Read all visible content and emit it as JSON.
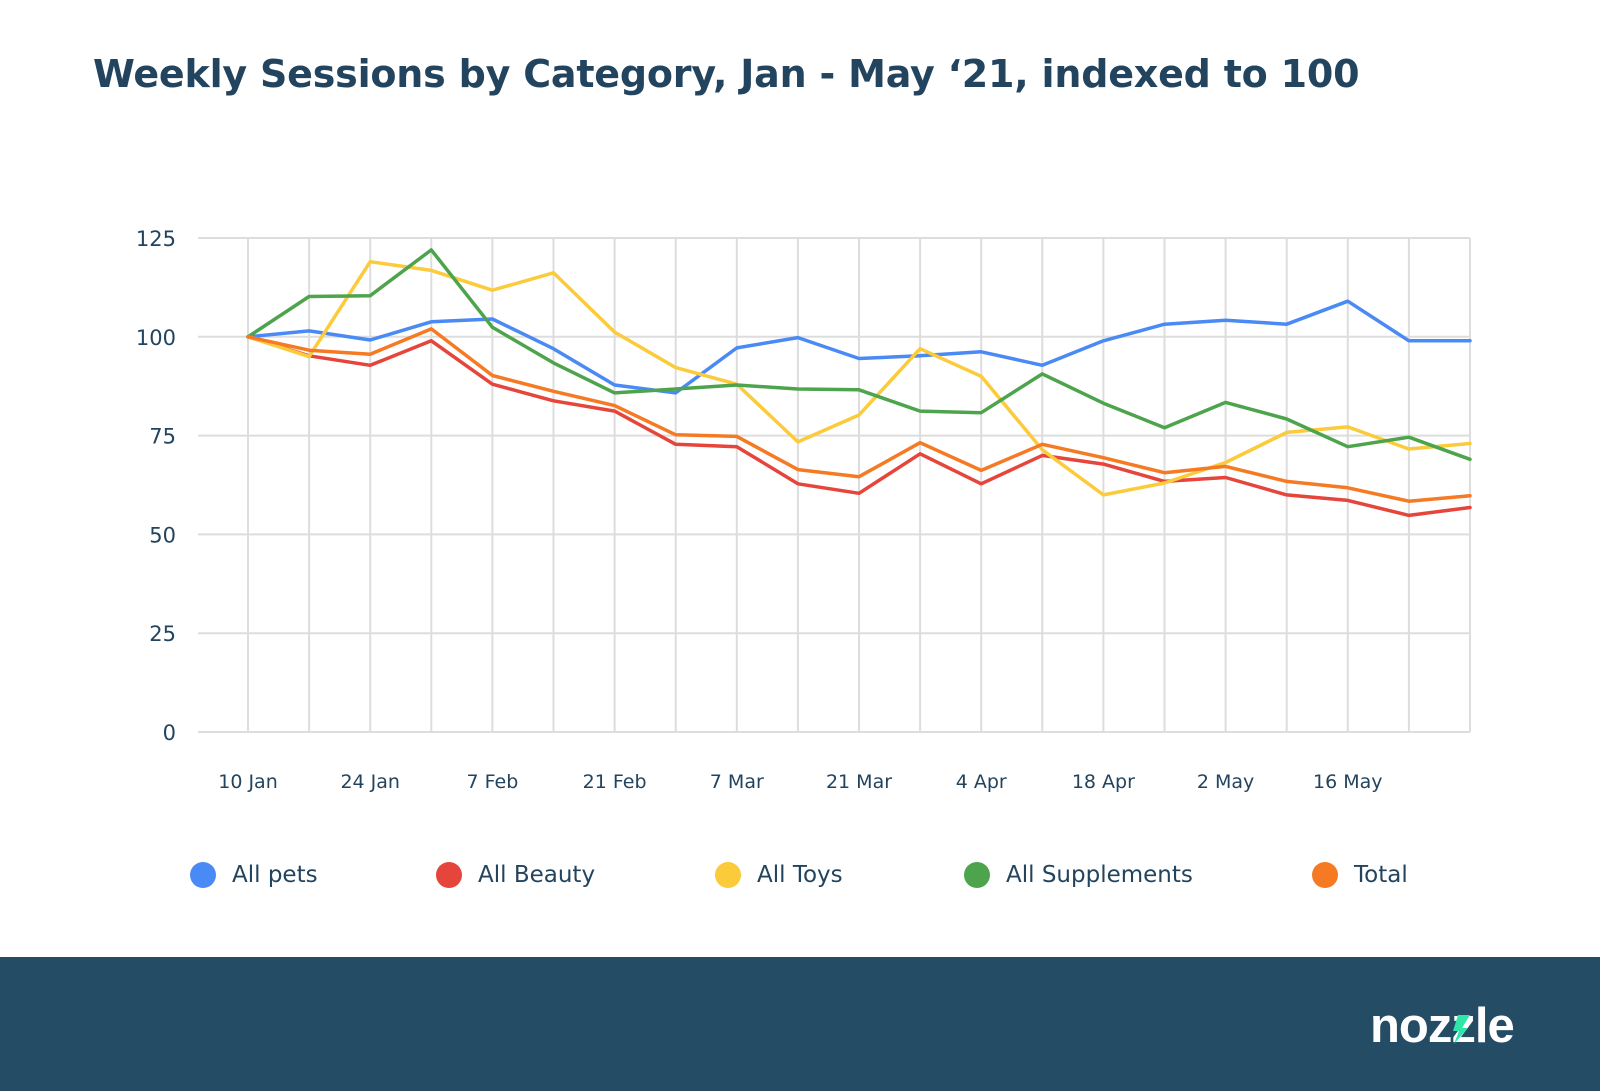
{
  "title": "Weekly Sessions by Category, Jan - May ‘21, indexed to 100",
  "colors": {
    "title": "#23445e",
    "grid": "#dddddd",
    "axis_text": "#23445e",
    "footer": "#244c64",
    "logo_text": "#ffffff",
    "logo_accent": "#2ee6a8"
  },
  "logo": {
    "text": "nozzle"
  },
  "chart_data": {
    "type": "line",
    "title": "Weekly Sessions by Category, Jan - May ‘21, indexed to 100",
    "xlabel": "",
    "ylabel": "",
    "ylim": [
      0,
      125
    ],
    "yticks": [
      0,
      25,
      50,
      75,
      100,
      125
    ],
    "grid": true,
    "legend_position": "bottom",
    "x": [
      "10 Jan",
      "17 Jan",
      "24 Jan",
      "31 Jan",
      "7 Feb",
      "14 Feb",
      "21 Feb",
      "28 Feb",
      "7 Mar",
      "14 Mar",
      "21 Mar",
      "28 Mar",
      "4 Apr",
      "11 Apr",
      "18 Apr",
      "25 Apr",
      "2 May",
      "9 May",
      "16 May",
      "23 May",
      "30 May"
    ],
    "xtick_labels": [
      "10 Jan",
      "",
      "24 Jan",
      "",
      "7 Feb",
      "",
      "21 Feb",
      "",
      "7 Mar",
      "",
      "21 Mar",
      "",
      "4 Apr",
      "",
      "18 Apr",
      "",
      "2 May",
      "",
      "16 May",
      "",
      ""
    ],
    "series": [
      {
        "name": "All pets",
        "color": "#4a8af4",
        "values": [
          100,
          101.5,
          99.2,
          103.8,
          104.5,
          97,
          87.8,
          85.8,
          97.2,
          99.8,
          94.5,
          95.2,
          96.2,
          92.8,
          99,
          103.2,
          104.2,
          103.2,
          109,
          99,
          99
        ]
      },
      {
        "name": "All Beauty",
        "color": "#e5453a",
        "values": [
          100,
          95.2,
          92.8,
          99,
          88,
          83.8,
          81.2,
          72.8,
          72.2,
          62.8,
          60.4,
          70.4,
          62.8,
          70,
          67.8,
          63.4,
          64.4,
          60,
          58.6,
          54.8,
          56.8
        ]
      },
      {
        "name": "All Toys",
        "color": "#fbcb3b",
        "values": [
          100,
          95,
          119,
          116.8,
          111.8,
          116.2,
          101.2,
          92.2,
          88,
          73.4,
          80.2,
          97,
          90,
          71.4,
          60,
          63,
          68.2,
          75.8,
          77.2,
          71.6,
          73
        ]
      },
      {
        "name": "All Supplements",
        "color": "#4ea44c",
        "values": [
          100,
          110.2,
          110.4,
          122,
          102.4,
          93.4,
          85.8,
          86.8,
          87.8,
          86.8,
          86.6,
          81.2,
          80.8,
          90.6,
          83.2,
          77,
          83.4,
          79.2,
          72.2,
          74.6,
          69
        ]
      },
      {
        "name": "Total",
        "color": "#f57a23",
        "values": [
          100,
          96.6,
          95.6,
          102,
          90.2,
          86.2,
          82.6,
          75.2,
          74.8,
          66.4,
          64.6,
          73.2,
          66.2,
          72.8,
          69.4,
          65.6,
          67.2,
          63.4,
          61.8,
          58.4,
          59.8
        ]
      }
    ]
  }
}
